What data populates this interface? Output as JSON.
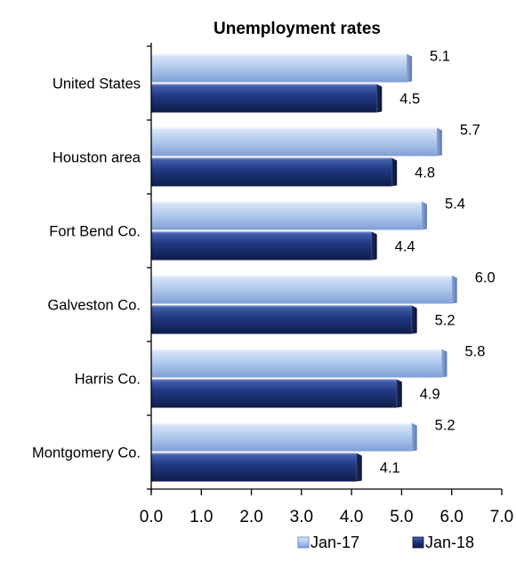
{
  "chart_data": {
    "type": "bar",
    "orientation": "horizontal",
    "title": "Unemployment rates",
    "xlabel": "",
    "ylabel": "",
    "categories": [
      "United States",
      "Houston area",
      "Fort Bend Co.",
      "Galveston Co.",
      "Harris Co.",
      "Montgomery Co."
    ],
    "series": [
      {
        "name": "Jan-17",
        "color": "#a9c4ec",
        "values": [
          5.1,
          5.7,
          5.4,
          6.0,
          5.8,
          5.2
        ],
        "labels": [
          "5.1",
          "5.7",
          "5.4",
          "6.0",
          "5.8",
          "5.2"
        ]
      },
      {
        "name": "Jan-18",
        "color": "#1c2f6b",
        "values": [
          4.5,
          4.8,
          4.4,
          5.2,
          4.9,
          4.1
        ],
        "labels": [
          "4.5",
          "4.8",
          "4.4",
          "5.2",
          "4.9",
          "4.1"
        ]
      }
    ],
    "xlim": [
      0,
      7
    ],
    "xticks": [
      "0.0",
      "1.0",
      "2.0",
      "3.0",
      "4.0",
      "5.0",
      "6.0",
      "7.0"
    ],
    "grid": false,
    "legend_position": "bottom-right"
  }
}
